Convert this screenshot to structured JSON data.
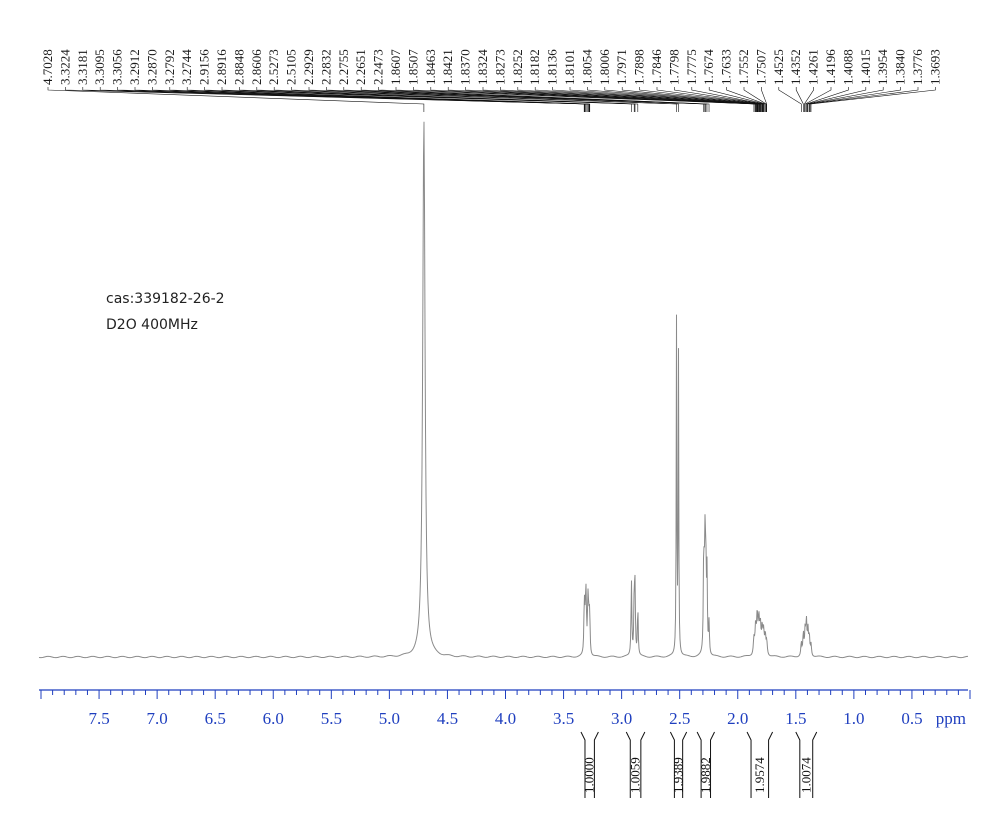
{
  "sample": {
    "cas_line": "cas:339182-26-2",
    "solvent_line": "D2O 400MHz"
  },
  "chart_data": {
    "type": "line",
    "title": "",
    "xlabel": "ppm",
    "ylabel": "",
    "x_reversed": true,
    "xlim": [
      8.0,
      0.0
    ],
    "grid": false,
    "colors": {
      "axis": "#1f3fbf",
      "spectrum": "#8a8a8a",
      "leaders": "#111111",
      "integral": "#111111"
    },
    "x_ticks": [
      {
        "value": 7.5,
        "label": "7.5"
      },
      {
        "value": 7.0,
        "label": "7.0"
      },
      {
        "value": 6.5,
        "label": "6.5"
      },
      {
        "value": 6.0,
        "label": "6.0"
      },
      {
        "value": 5.5,
        "label": "5.5"
      },
      {
        "value": 5.0,
        "label": "5.0"
      },
      {
        "value": 4.5,
        "label": "4.5"
      },
      {
        "value": 4.0,
        "label": "4.0"
      },
      {
        "value": 3.5,
        "label": "3.5"
      },
      {
        "value": 3.0,
        "label": "3.0"
      },
      {
        "value": 2.5,
        "label": "2.5"
      },
      {
        "value": 2.0,
        "label": "2.0"
      },
      {
        "value": 1.5,
        "label": "1.5"
      },
      {
        "value": 1.0,
        "label": "1.0"
      },
      {
        "value": 0.5,
        "label": "0.5"
      }
    ],
    "peak_labels": [
      "4.7028",
      "3.3224",
      "3.3181",
      "3.3095",
      "3.3056",
      "3.2912",
      "3.2870",
      "3.2792",
      "3.2744",
      "2.9156",
      "2.8916",
      "2.8848",
      "2.8606",
      "2.5273",
      "2.5105",
      "2.2929",
      "2.2832",
      "2.2755",
      "2.2651",
      "2.2473",
      "1.8607",
      "1.8507",
      "1.8463",
      "1.8421",
      "1.8370",
      "1.8324",
      "1.8273",
      "1.8252",
      "1.8182",
      "1.8136",
      "1.8101",
      "1.8054",
      "1.8006",
      "1.7971",
      "1.7898",
      "1.7846",
      "1.7798",
      "1.7775",
      "1.7674",
      "1.7633",
      "1.7552",
      "1.7507",
      "1.4525",
      "1.4352",
      "1.4261",
      "1.4196",
      "1.4088",
      "1.4015",
      "1.3954",
      "1.3840",
      "1.3776",
      "1.3693"
    ],
    "peaks": [
      {
        "ppm": 4.7028,
        "height": 1.0,
        "width": 0.012
      },
      {
        "ppm": 3.3224,
        "height": 0.06,
        "width": 0.004
      },
      {
        "ppm": 3.3181,
        "height": 0.064,
        "width": 0.004
      },
      {
        "ppm": 3.3095,
        "height": 0.07,
        "width": 0.004
      },
      {
        "ppm": 3.3056,
        "height": 0.074,
        "width": 0.004
      },
      {
        "ppm": 3.2912,
        "height": 0.071,
        "width": 0.004
      },
      {
        "ppm": 3.287,
        "height": 0.066,
        "width": 0.004
      },
      {
        "ppm": 3.2792,
        "height": 0.058,
        "width": 0.004
      },
      {
        "ppm": 3.2744,
        "height": 0.052,
        "width": 0.004
      },
      {
        "ppm": 2.9156,
        "height": 0.14,
        "width": 0.004
      },
      {
        "ppm": 2.8916,
        "height": 0.11,
        "width": 0.004
      },
      {
        "ppm": 2.8848,
        "height": 0.12,
        "width": 0.004
      },
      {
        "ppm": 2.8606,
        "height": 0.09,
        "width": 0.004
      },
      {
        "ppm": 2.5273,
        "height": 0.62,
        "width": 0.003
      },
      {
        "ppm": 2.5105,
        "height": 0.56,
        "width": 0.003
      },
      {
        "ppm": 2.2929,
        "height": 0.19,
        "width": 0.004
      },
      {
        "ppm": 2.2832,
        "height": 0.2,
        "width": 0.004
      },
      {
        "ppm": 2.2755,
        "height": 0.18,
        "width": 0.004
      },
      {
        "ppm": 2.2651,
        "height": 0.15,
        "width": 0.004
      },
      {
        "ppm": 2.2473,
        "height": 0.06,
        "width": 0.004
      },
      {
        "ppm": 1.8607,
        "height": 0.03,
        "width": 0.006
      },
      {
        "ppm": 1.8463,
        "height": 0.05,
        "width": 0.006
      },
      {
        "ppm": 1.8324,
        "height": 0.07,
        "width": 0.006
      },
      {
        "ppm": 1.8182,
        "height": 0.06,
        "width": 0.006
      },
      {
        "ppm": 1.8054,
        "height": 0.05,
        "width": 0.006
      },
      {
        "ppm": 1.7898,
        "height": 0.045,
        "width": 0.006
      },
      {
        "ppm": 1.7775,
        "height": 0.04,
        "width": 0.006
      },
      {
        "ppm": 1.7633,
        "height": 0.035,
        "width": 0.006
      },
      {
        "ppm": 1.7507,
        "height": 0.025,
        "width": 0.006
      },
      {
        "ppm": 1.4525,
        "height": 0.025,
        "width": 0.005
      },
      {
        "ppm": 1.4352,
        "height": 0.04,
        "width": 0.005
      },
      {
        "ppm": 1.4196,
        "height": 0.045,
        "width": 0.005
      },
      {
        "ppm": 1.4088,
        "height": 0.06,
        "width": 0.005
      },
      {
        "ppm": 1.3954,
        "height": 0.045,
        "width": 0.005
      },
      {
        "ppm": 1.384,
        "height": 0.035,
        "width": 0.005
      },
      {
        "ppm": 1.3693,
        "height": 0.022,
        "width": 0.005
      }
    ],
    "integrals": [
      {
        "from": 3.35,
        "to": 3.2,
        "label": "1.0000"
      },
      {
        "from": 2.96,
        "to": 2.8,
        "label": "1.0059"
      },
      {
        "from": 2.58,
        "to": 2.44,
        "label": "1.9389"
      },
      {
        "from": 2.35,
        "to": 2.2,
        "label": "1.9882"
      },
      {
        "from": 1.92,
        "to": 1.7,
        "label": "1.9574"
      },
      {
        "from": 1.5,
        "to": 1.32,
        "label": "1.0074"
      }
    ]
  }
}
